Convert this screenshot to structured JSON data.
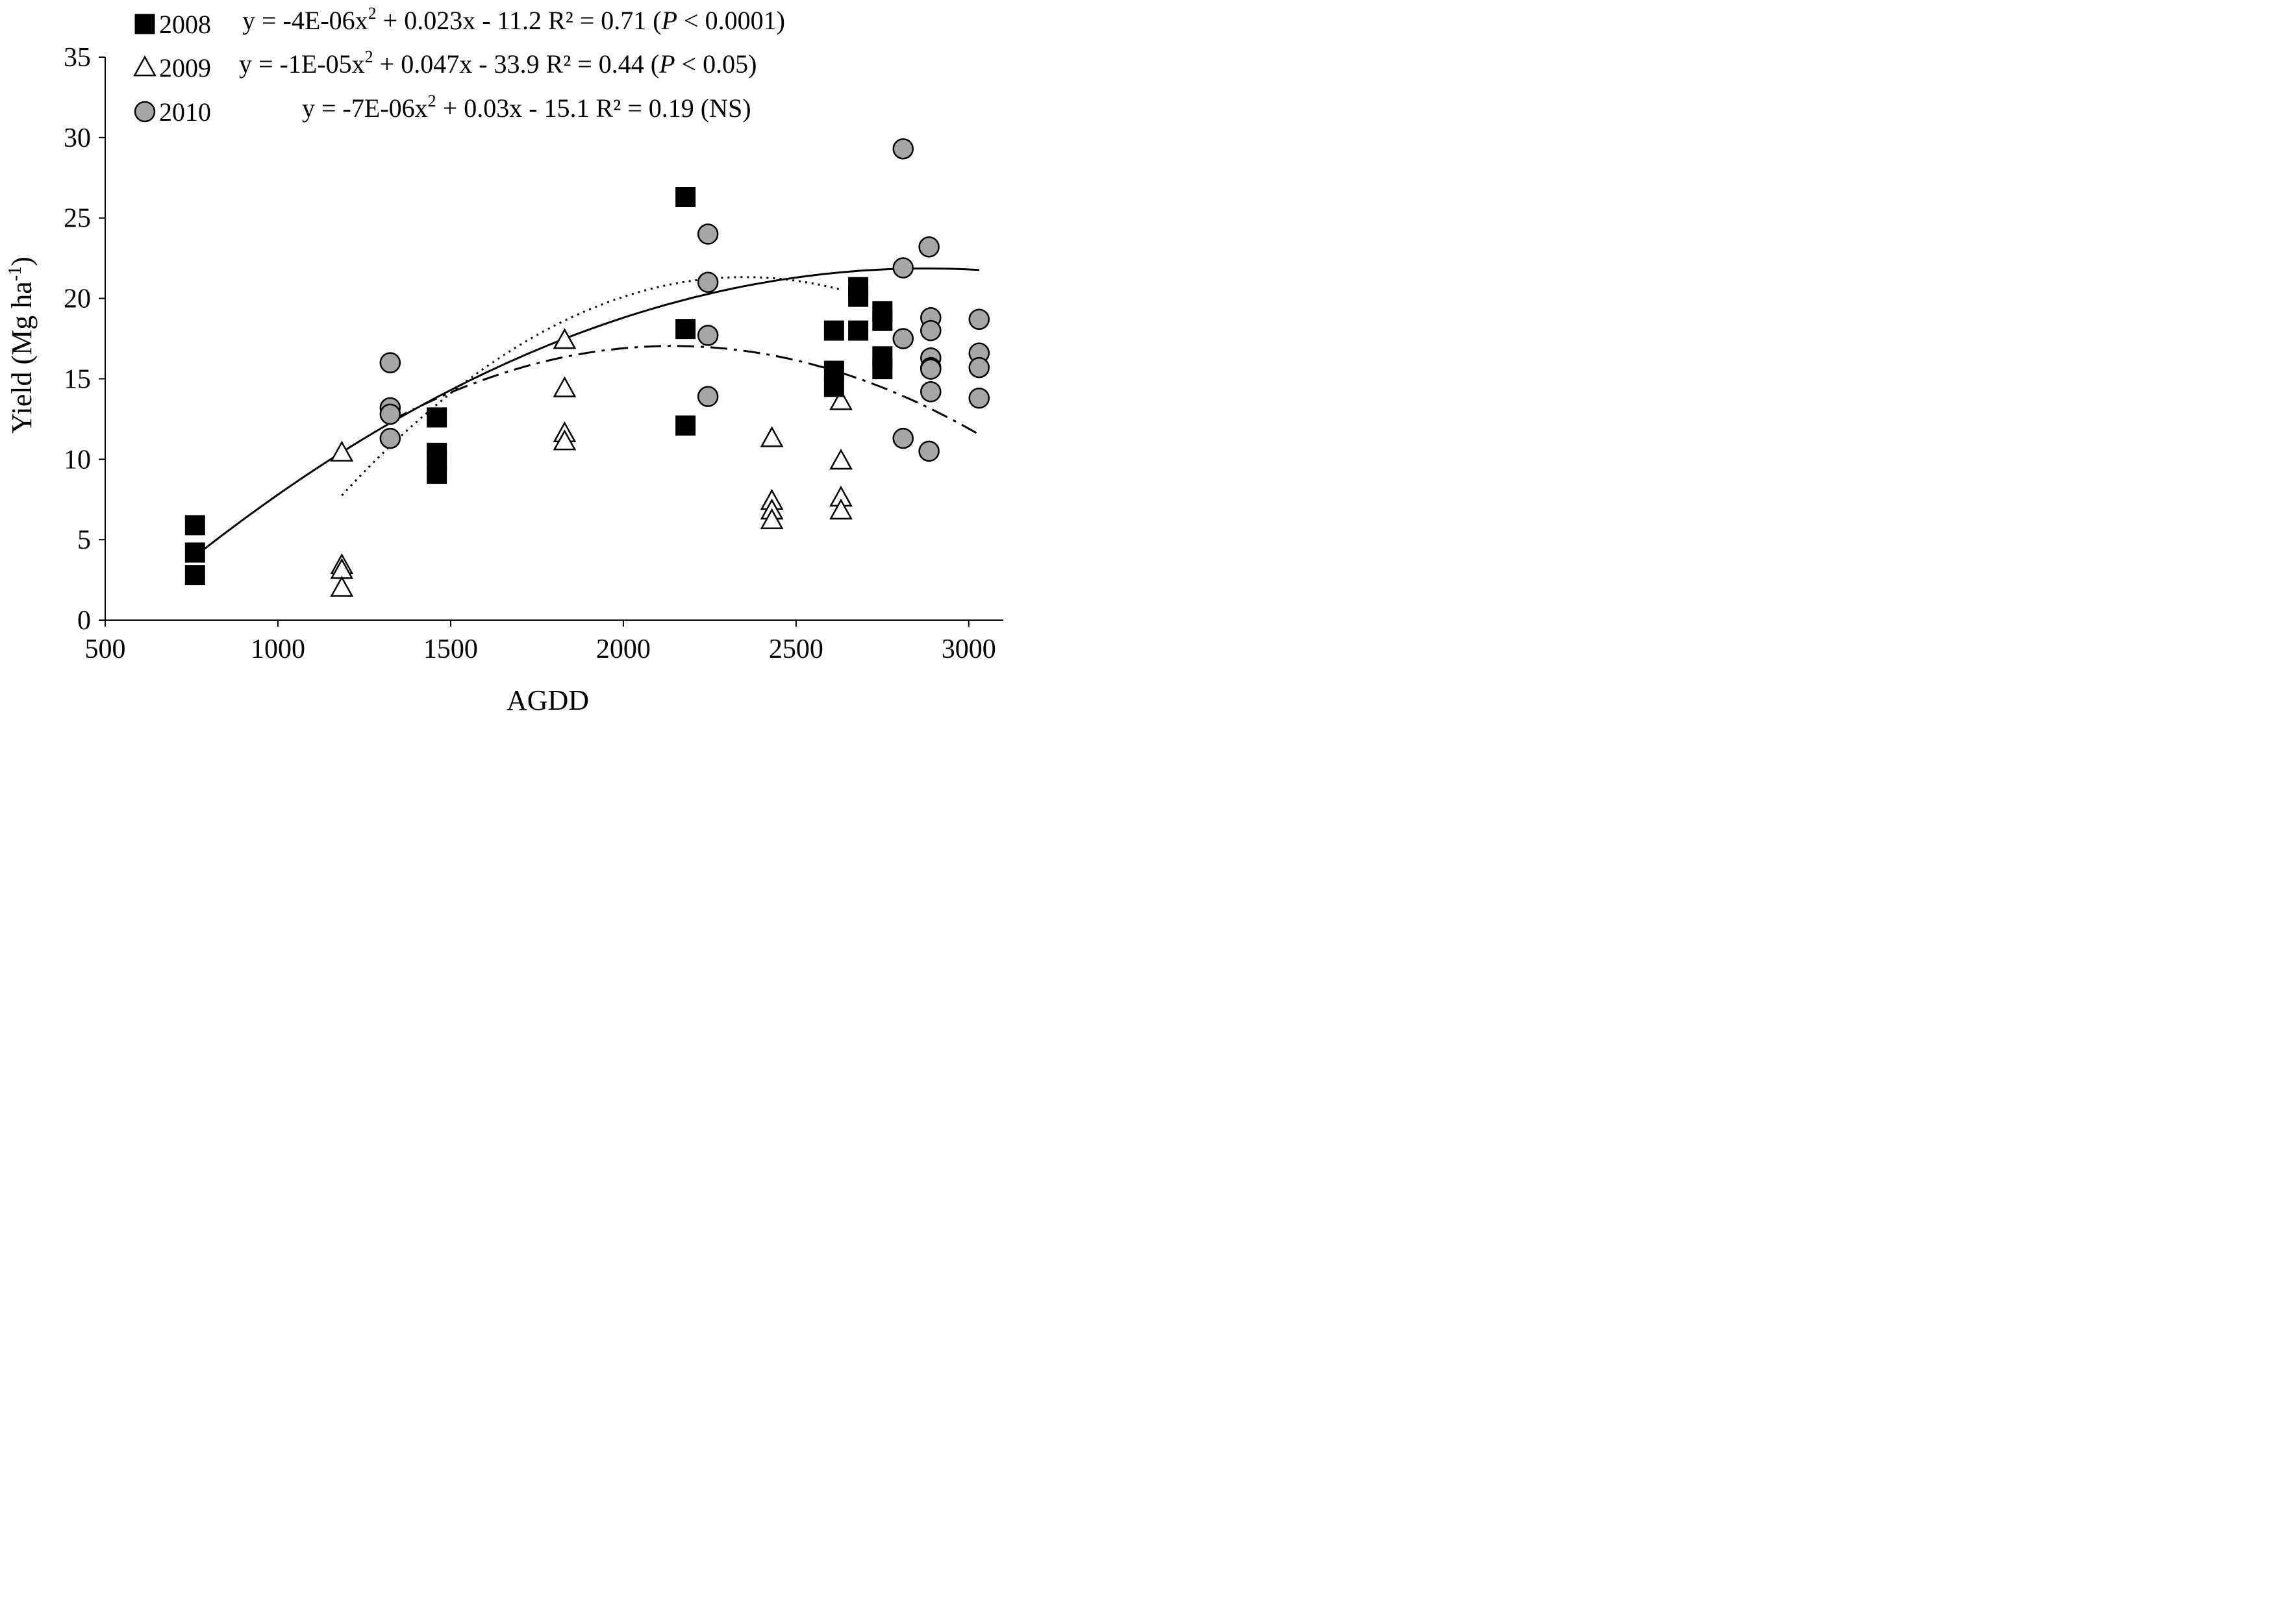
{
  "chart_data": {
    "type": "scatter",
    "title": "",
    "xlabel": "AGDD",
    "ylabel": "Yield (Mg ha-1)",
    "ylabel_parts": {
      "pre": "Yield (Mg ha",
      "sup": "-1",
      "post": ")"
    },
    "xlim": [
      500,
      3100
    ],
    "ylim": [
      0,
      35
    ],
    "x_ticks": [
      500,
      1000,
      1500,
      2000,
      2500,
      3000
    ],
    "y_ticks": [
      0,
      5,
      10,
      15,
      20,
      25,
      30,
      35
    ],
    "grid": false,
    "legend_position": "top-left",
    "series": [
      {
        "name": "2008",
        "marker": "square",
        "fill": "#000000",
        "fit_style": "solid",
        "fit": {
          "a": -4e-06,
          "b": 0.023,
          "c": -11.2,
          "x_range": [
            760,
            3030
          ]
        },
        "equation": {
          "y": "y = -4E-06x",
          "sq": "2",
          "rest": " + 0.023x - 11.2",
          "r2": "R² = 0.71 (",
          "p": "P",
          "p_rest": " < 0.0001)"
        },
        "points": [
          [
            760,
            5.9
          ],
          [
            760,
            4.2
          ],
          [
            760,
            2.8
          ],
          [
            1460,
            12.6
          ],
          [
            1460,
            10.4
          ],
          [
            1460,
            9.9
          ],
          [
            1460,
            9.1
          ],
          [
            2180,
            26.3
          ],
          [
            2180,
            18.1
          ],
          [
            2180,
            12.1
          ],
          [
            2610,
            18.0
          ],
          [
            2610,
            15.5
          ],
          [
            2610,
            14.5
          ],
          [
            2680,
            20.7
          ],
          [
            2680,
            20.1
          ],
          [
            2680,
            18.0
          ],
          [
            2750,
            19.2
          ],
          [
            2750,
            18.6
          ],
          [
            2750,
            16.4
          ],
          [
            2750,
            15.6
          ]
        ]
      },
      {
        "name": "2009",
        "marker": "triangle",
        "fill": "#ffffff",
        "fit_style": "dotted",
        "fit": {
          "a": -1e-05,
          "b": 0.047,
          "c": -33.9,
          "x_range": [
            1185,
            2630
          ]
        },
        "equation": {
          "y": "y = -1E-05x",
          "sq": "2",
          "rest": " + 0.047x - 33.9",
          "r2": "R² = 0.44 (",
          "p": "P",
          "p_rest": " < 0.05)"
        },
        "points": [
          [
            1185,
            10.4
          ],
          [
            1185,
            3.4
          ],
          [
            1185,
            3.1
          ],
          [
            1185,
            2.0
          ],
          [
            1830,
            17.4
          ],
          [
            1830,
            14.4
          ],
          [
            1830,
            11.6
          ],
          [
            1830,
            11.1
          ],
          [
            2430,
            11.3
          ],
          [
            2430,
            7.4
          ],
          [
            2430,
            6.8
          ],
          [
            2430,
            6.2
          ],
          [
            2630,
            13.6
          ],
          [
            2630,
            9.9
          ],
          [
            2630,
            7.6
          ],
          [
            2630,
            6.8
          ]
        ]
      },
      {
        "name": "2010",
        "marker": "circle",
        "fill": "#a6a6a6",
        "fit_style": "dash-dot",
        "fit": {
          "a": -7e-06,
          "b": 0.03,
          "c": -15.1,
          "x_range": [
            1330,
            3030
          ]
        },
        "equation": {
          "y": "y = -7E-06x",
          "sq": "2",
          "rest": " + 0.03x - 15.1",
          "r2": "R² = 0.19 (NS)",
          "p": "",
          "p_rest": ""
        },
        "points": [
          [
            1325,
            16.0
          ],
          [
            1325,
            13.2
          ],
          [
            1325,
            12.8
          ],
          [
            1325,
            11.3
          ],
          [
            2245,
            24.0
          ],
          [
            2245,
            21.0
          ],
          [
            2245,
            17.7
          ],
          [
            2245,
            13.9
          ],
          [
            2810,
            29.3
          ],
          [
            2810,
            21.9
          ],
          [
            2810,
            17.5
          ],
          [
            2810,
            11.3
          ],
          [
            2885,
            23.2
          ],
          [
            2885,
            10.5
          ],
          [
            2890,
            18.8
          ],
          [
            2890,
            18.0
          ],
          [
            2890,
            16.3
          ],
          [
            2890,
            15.7
          ],
          [
            2890,
            15.6
          ],
          [
            2890,
            14.2
          ],
          [
            3030,
            18.7
          ],
          [
            3030,
            16.6
          ],
          [
            3030,
            15.7
          ],
          [
            3030,
            13.8
          ]
        ]
      }
    ]
  }
}
